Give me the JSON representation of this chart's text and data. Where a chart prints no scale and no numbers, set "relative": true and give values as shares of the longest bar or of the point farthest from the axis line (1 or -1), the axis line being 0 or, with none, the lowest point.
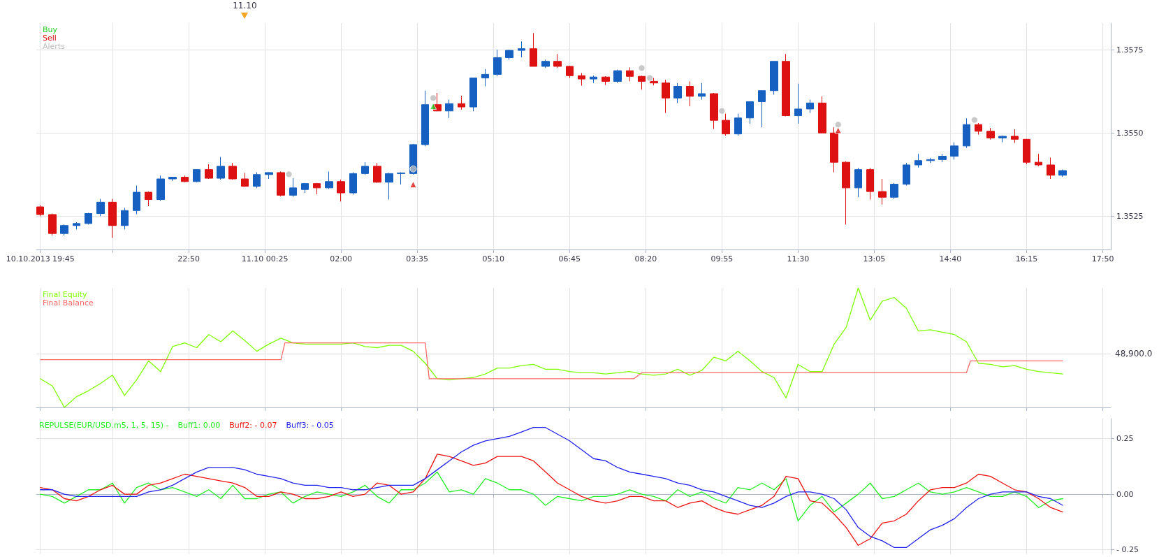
{
  "chart_data": [
    {
      "type": "candlestick",
      "x": [
        "2013-10-10T19:45",
        "2013-10-10T20:00",
        "2013-10-10T20:15",
        "2013-10-10T20:30",
        "2013-10-10T20:45",
        "2013-10-10T21:00",
        "2013-10-10T21:15",
        "2013-10-10T21:30",
        "2013-10-10T21:45",
        "2013-10-10T22:00",
        "2013-10-10T22:15",
        "2013-10-10T22:30",
        "2013-10-10T22:45",
        "2013-10-10T23:00",
        "2013-10-10T23:15",
        "2013-10-10T23:30",
        "2013-10-10T23:45",
        "2013-10-11T00:00",
        "2013-10-11T00:15",
        "2013-10-11T00:30",
        "2013-10-11T00:45",
        "2013-10-11T01:00",
        "2013-10-11T01:15",
        "2013-10-11T01:30",
        "2013-10-11T01:45",
        "2013-10-11T02:00",
        "2013-10-11T02:15",
        "2013-10-11T02:30",
        "2013-10-11T02:45",
        "2013-10-11T03:00",
        "2013-10-11T03:15",
        "2013-10-11T03:30",
        "2013-10-11T03:45",
        "2013-10-11T04:00",
        "2013-10-11T04:15",
        "2013-10-11T04:30",
        "2013-10-11T04:45",
        "2013-10-11T05:00",
        "2013-10-11T05:15",
        "2013-10-11T05:30",
        "2013-10-11T05:45",
        "2013-10-11T06:00",
        "2013-10-11T06:15",
        "2013-10-11T06:30",
        "2013-10-11T06:45",
        "2013-10-11T07:00",
        "2013-10-11T07:15",
        "2013-10-11T07:30",
        "2013-10-11T07:45",
        "2013-10-11T08:00",
        "2013-10-11T08:15",
        "2013-10-11T08:30",
        "2013-10-11T08:45",
        "2013-10-11T09:00",
        "2013-10-11T09:15",
        "2013-10-11T09:30",
        "2013-10-11T09:45",
        "2013-10-11T10:00",
        "2013-10-11T10:15",
        "2013-10-11T10:30",
        "2013-10-11T10:45",
        "2013-10-11T11:00",
        "2013-10-11T11:15",
        "2013-10-11T11:30",
        "2013-10-11T11:45",
        "2013-10-11T12:00",
        "2013-10-11T12:15",
        "2013-10-11T12:30",
        "2013-10-11T12:45",
        "2013-10-11T13:00",
        "2013-10-11T13:15",
        "2013-10-11T13:30",
        "2013-10-11T13:45",
        "2013-10-11T14:00",
        "2013-10-11T14:15",
        "2013-10-11T14:30",
        "2013-10-11T14:45",
        "2013-10-11T15:00",
        "2013-10-11T15:15",
        "2013-10-11T15:30",
        "2013-10-11T15:45",
        "2013-10-11T16:00",
        "2013-10-11T16:15",
        "2013-10-11T16:30",
        "2013-10-11T16:45",
        "2013-10-11T17:00"
      ],
      "ohlc": [
        [
          1.35278,
          1.35283,
          1.3525,
          1.35255
        ],
        [
          1.35255,
          1.35258,
          1.35192,
          1.35198
        ],
        [
          1.35198,
          1.35225,
          1.35192,
          1.35222
        ],
        [
          1.35222,
          1.35232,
          1.3521,
          1.35228
        ],
        [
          1.35228,
          1.3526,
          1.35225,
          1.35258
        ],
        [
          1.35258,
          1.35302,
          1.3525,
          1.35292
        ],
        [
          1.35292,
          1.35302,
          1.35185,
          1.35222
        ],
        [
          1.35222,
          1.35275,
          1.3521,
          1.35267
        ],
        [
          1.35267,
          1.35342,
          1.35256,
          1.35322
        ],
        [
          1.35322,
          1.35324,
          1.3528,
          1.353
        ],
        [
          1.353,
          1.35372,
          1.35296,
          1.35362
        ],
        [
          1.35362,
          1.35367,
          1.35356,
          1.35367
        ],
        [
          1.35367,
          1.35372,
          1.35352,
          1.35354
        ],
        [
          1.35354,
          1.3539,
          1.35352,
          1.3539
        ],
        [
          1.3539,
          1.35406,
          1.35362,
          1.35364
        ],
        [
          1.35364,
          1.35428,
          1.3536,
          1.354
        ],
        [
          1.354,
          1.3541,
          1.3536,
          1.35362
        ],
        [
          1.35362,
          1.3538,
          1.35338,
          1.3534
        ],
        [
          1.3534,
          1.35382,
          1.35334,
          1.35375
        ],
        [
          1.35375,
          1.35382,
          1.35362,
          1.35381
        ],
        [
          1.35381,
          1.35384,
          1.3531,
          1.35313
        ],
        [
          1.35313,
          1.35364,
          1.35308,
          1.35335
        ],
        [
          1.3533,
          1.3535,
          1.3532,
          1.35348
        ],
        [
          1.35348,
          1.3535,
          1.35316,
          1.35335
        ],
        [
          1.35335,
          1.35384,
          1.35332,
          1.35354
        ],
        [
          1.35354,
          1.3536,
          1.35294,
          1.3532
        ],
        [
          1.3532,
          1.35382,
          1.35315,
          1.35378
        ],
        [
          1.35378,
          1.35412,
          1.35375,
          1.354
        ],
        [
          1.354,
          1.3541,
          1.3535,
          1.35352
        ],
        [
          1.35352,
          1.3538,
          1.353,
          1.35378
        ],
        [
          1.35378,
          1.35382,
          1.35345,
          1.3538
        ],
        [
          1.35378,
          1.35467,
          1.35375,
          1.35465
        ],
        [
          1.35465,
          1.35627,
          1.3546,
          1.35585
        ],
        [
          1.35585,
          1.3562,
          1.35565,
          1.35566
        ],
        [
          1.35566,
          1.356,
          1.35545,
          1.35588
        ],
        [
          1.35588,
          1.35612,
          1.3557,
          1.35578
        ],
        [
          1.35578,
          1.35665,
          1.35565,
          1.35665
        ],
        [
          1.35665,
          1.35692,
          1.3564,
          1.35676
        ],
        [
          1.35676,
          1.3575,
          1.3567,
          1.35726
        ],
        [
          1.35726,
          1.3575,
          1.3572,
          1.35748
        ],
        [
          1.35748,
          1.35775,
          1.35727,
          1.35753
        ],
        [
          1.35753,
          1.358,
          1.357,
          1.357
        ],
        [
          1.357,
          1.3572,
          1.35695,
          1.35715
        ],
        [
          1.35715,
          1.35737,
          1.35695,
          1.357
        ],
        [
          1.357,
          1.35702,
          1.35665,
          1.35672
        ],
        [
          1.35672,
          1.3568,
          1.35642,
          1.35662
        ],
        [
          1.35662,
          1.35672,
          1.3565,
          1.35668
        ],
        [
          1.35668,
          1.3567,
          1.35644,
          1.35655
        ],
        [
          1.35655,
          1.3569,
          1.3565,
          1.35687
        ],
        [
          1.35687,
          1.35697,
          1.35655,
          1.3567
        ],
        [
          1.3567,
          1.35672,
          1.3563,
          1.35655
        ],
        [
          1.35655,
          1.35665,
          1.35643,
          1.3565
        ],
        [
          1.3565,
          1.3566,
          1.3556,
          1.35605
        ],
        [
          1.35605,
          1.3565,
          1.3559,
          1.3564
        ],
        [
          1.3564,
          1.35655,
          1.3558,
          1.3561
        ],
        [
          1.3561,
          1.3565,
          1.356,
          1.35618
        ],
        [
          1.35618,
          1.3562,
          1.35512,
          1.35538
        ],
        [
          1.35538,
          1.35558,
          1.35492,
          1.35497
        ],
        [
          1.35497,
          1.35558,
          1.35492,
          1.35545
        ],
        [
          1.35545,
          1.35594,
          1.35528,
          1.35594
        ],
        [
          1.35594,
          1.35627,
          1.35517,
          1.35627
        ],
        [
          1.35627,
          1.35715,
          1.35615,
          1.35715
        ],
        [
          1.35715,
          1.35737,
          1.3555,
          1.35552
        ],
        [
          1.35552,
          1.35648,
          1.35528,
          1.35572
        ],
        [
          1.35572,
          1.356,
          1.3556,
          1.3559
        ],
        [
          1.3559,
          1.3561,
          1.355,
          1.355
        ],
        [
          1.355,
          1.35517,
          1.35382,
          1.35412
        ],
        [
          1.35412,
          1.35415,
          1.35225,
          1.35335
        ],
        [
          1.35335,
          1.35395,
          1.35307,
          1.3539
        ],
        [
          1.3539,
          1.35395,
          1.353,
          1.35324
        ],
        [
          1.35324,
          1.35362,
          1.35285,
          1.35307
        ],
        [
          1.35307,
          1.3535,
          1.35302,
          1.35346
        ],
        [
          1.35346,
          1.3541,
          1.35342,
          1.35404
        ],
        [
          1.35404,
          1.35437,
          1.35396,
          1.35417
        ],
        [
          1.35417,
          1.35425,
          1.3541,
          1.3542
        ],
        [
          1.3542,
          1.35437,
          1.35412,
          1.3543
        ],
        [
          1.3543,
          1.35472,
          1.3542,
          1.35461
        ],
        [
          1.35461,
          1.35544,
          1.35455,
          1.35525
        ],
        [
          1.35525,
          1.3553,
          1.35495,
          1.35505
        ],
        [
          1.35505,
          1.35515,
          1.3548,
          1.35485
        ],
        [
          1.35485,
          1.35492,
          1.35472,
          1.3549
        ],
        [
          1.3549,
          1.35511,
          1.3547,
          1.35481
        ],
        [
          1.35481,
          1.35482,
          1.35406,
          1.35412
        ],
        [
          1.35412,
          1.35437,
          1.354,
          1.35404
        ],
        [
          1.35404,
          1.35426,
          1.35362,
          1.35373
        ],
        [
          1.35373,
          1.3539,
          1.35368,
          1.35387
        ]
      ],
      "colors": [
        "#dd1111",
        "#dd1111",
        "#1560c0",
        "#1560c0",
        "#1560c0",
        "#1560c0",
        "#dd1111",
        "#1560c0",
        "#1560c0",
        "#dd1111",
        "#1560c0",
        "#1560c0",
        "#dd1111",
        "#1560c0",
        "#dd1111",
        "#1560c0",
        "#dd1111",
        "#dd1111",
        "#1560c0",
        "#1560c0",
        "#dd1111",
        "#1560c0",
        "#1560c0",
        "#dd1111",
        "#1560c0",
        "#dd1111",
        "#1560c0",
        "#1560c0",
        "#dd1111",
        "#1560c0",
        "#1560c0",
        "#1560c0",
        "#1560c0",
        "#dd1111",
        "#1560c0",
        "#dd1111",
        "#1560c0",
        "#1560c0",
        "#1560c0",
        "#1560c0",
        "#1560c0",
        "#dd1111",
        "#1560c0",
        "#dd1111",
        "#dd1111",
        "#dd1111",
        "#1560c0",
        "#dd1111",
        "#1560c0",
        "#dd1111",
        "#dd1111",
        "#dd1111",
        "#dd1111",
        "#1560c0",
        "#dd1111",
        "#1560c0",
        "#dd1111",
        "#dd1111",
        "#1560c0",
        "#1560c0",
        "#1560c0",
        "#1560c0",
        "#dd1111",
        "#1560c0",
        "#1560c0",
        "#dd1111",
        "#dd1111",
        "#dd1111",
        "#1560c0",
        "#dd1111",
        "#dd1111",
        "#1560c0",
        "#1560c0",
        "#1560c0",
        "#1560c0",
        "#1560c0",
        "#1560c0",
        "#1560c0",
        "#dd1111",
        "#dd1111",
        "#1560c0",
        "#dd1111",
        "#dd1111",
        "#dd1111",
        "#dd1111",
        "#1560c0"
      ],
      "series": [
        {
          "name": "Buy",
          "type": "scatter",
          "marker": "triangle",
          "color": "#22cc22",
          "x": [
            "2013-10-11T03:55"
          ],
          "values": [
            1.3558
          ]
        },
        {
          "name": "Sell",
          "type": "scatter",
          "marker": "triangle",
          "color": "#dd1111",
          "x": [
            "2013-10-11T03:30",
            "2013-10-11T12:20"
          ],
          "values": [
            1.35345,
            1.35508
          ]
        },
        {
          "name": "Alerts",
          "type": "scatter",
          "marker": "circle",
          "color": "#bbbbbb",
          "x": [
            "2013-10-11T00:55",
            "2013-10-11T03:30",
            "2013-10-11T03:55",
            "2013-10-11T08:15",
            "2013-10-11T08:25",
            "2013-10-11T09:55",
            "2013-10-11T12:20",
            "2013-10-11T15:10"
          ],
          "values": [
            1.35376,
            1.35392,
            1.35605,
            1.35695,
            1.35665,
            1.35566,
            1.35525,
            1.35539
          ]
        }
      ],
      "xlim": [
        "2013-10-10T19:40",
        "2013-10-11T18:00"
      ],
      "xticks": [
        {
          "value": "2013-10-10T19:45",
          "label": "10.10.2013 19:45"
        },
        {
          "value": "2013-10-10T21:15",
          "label": null
        },
        {
          "value": "2013-10-10T22:50",
          "label": "22:50"
        },
        {
          "value": "2013-10-11T00:25",
          "label": "11.10 00:25"
        },
        {
          "value": "2013-10-11T02:00",
          "label": "02:00"
        },
        {
          "value": "2013-10-11T03:35",
          "label": "03:35"
        },
        {
          "value": "2013-10-11T05:10",
          "label": "05:10"
        },
        {
          "value": "2013-10-11T06:45",
          "label": "06:45"
        },
        {
          "value": "2013-10-11T08:20",
          "label": "08:20"
        },
        {
          "value": "2013-10-11T09:55",
          "label": "09:55"
        },
        {
          "value": "2013-10-11T11:30",
          "label": "11:30"
        },
        {
          "value": "2013-10-11T13:05",
          "label": "13:05"
        },
        {
          "value": "2013-10-11T14:40",
          "label": "14:40"
        },
        {
          "value": "2013-10-11T16:15",
          "label": "16:15"
        },
        {
          "value": "2013-10-11T17:50",
          "label": "17:50"
        }
      ],
      "ylim": [
        1.3515,
        1.3583
      ],
      "yticks": [
        {
          "value": 1.3525,
          "label": "1.3525"
        },
        {
          "value": 1.355,
          "label": "1.3550"
        },
        {
          "value": 1.3575,
          "label": "1.3575"
        }
      ],
      "annotations": [
        "11.10"
      ],
      "legend": "top left",
      "grid": true
    },
    {
      "type": "line",
      "x": [
        "2013-10-10T19:45",
        "2013-10-10T20:00",
        "2013-10-10T20:15",
        "2013-10-10T20:30",
        "2013-10-10T20:45",
        "2013-10-10T21:00",
        "2013-10-10T21:15",
        "2013-10-10T21:30",
        "2013-10-10T21:45",
        "2013-10-10T22:00",
        "2013-10-10T22:15",
        "2013-10-10T22:30",
        "2013-10-10T22:45",
        "2013-10-10T23:00",
        "2013-10-10T23:15",
        "2013-10-10T23:30",
        "2013-10-10T23:45",
        "2013-10-11T00:00",
        "2013-10-11T00:15",
        "2013-10-11T00:30",
        "2013-10-11T00:45",
        "2013-10-11T01:00",
        "2013-10-11T01:15",
        "2013-10-11T01:30",
        "2013-10-11T01:45",
        "2013-10-11T02:00",
        "2013-10-11T02:15",
        "2013-10-11T02:30",
        "2013-10-11T02:45",
        "2013-10-11T03:00",
        "2013-10-11T03:15",
        "2013-10-11T03:30",
        "2013-10-11T03:45",
        "2013-10-11T04:00",
        "2013-10-11T04:15",
        "2013-10-11T04:30",
        "2013-10-11T04:45",
        "2013-10-11T05:00",
        "2013-10-11T05:15",
        "2013-10-11T05:30",
        "2013-10-11T05:45",
        "2013-10-11T06:00",
        "2013-10-11T06:15",
        "2013-10-11T06:30",
        "2013-10-11T06:45",
        "2013-10-11T07:00",
        "2013-10-11T07:15",
        "2013-10-11T07:30",
        "2013-10-11T07:45",
        "2013-10-11T08:00",
        "2013-10-11T08:15",
        "2013-10-11T08:30",
        "2013-10-11T08:45",
        "2013-10-11T09:00",
        "2013-10-11T09:15",
        "2013-10-11T09:30",
        "2013-10-11T09:45",
        "2013-10-11T10:00",
        "2013-10-11T10:15",
        "2013-10-11T10:30",
        "2013-10-11T10:45",
        "2013-10-11T11:00",
        "2013-10-11T11:15",
        "2013-10-11T11:30",
        "2013-10-11T11:45",
        "2013-10-11T12:00",
        "2013-10-11T12:15",
        "2013-10-11T12:30",
        "2013-10-11T12:45",
        "2013-10-11T13:00",
        "2013-10-11T13:15",
        "2013-10-11T13:30",
        "2013-10-11T13:45",
        "2013-10-11T14:00",
        "2013-10-11T14:15",
        "2013-10-11T14:30",
        "2013-10-11T14:45",
        "2013-10-11T15:00",
        "2013-10-11T15:15",
        "2013-10-11T15:30",
        "2013-10-11T15:45",
        "2013-10-11T16:00",
        "2013-10-11T16:15",
        "2013-10-11T16:30",
        "2013-10-11T16:45",
        "2013-10-11T17:00"
      ],
      "series": [
        {
          "name": "Final Equity",
          "color": "#7fff00",
          "values": [
            0.24,
            0.18,
            0,
            0.09,
            0.14,
            0.2,
            0.27,
            0.1,
            0.23,
            0.39,
            0.3,
            0.51,
            0.54,
            0.5,
            0.61,
            0.55,
            0.64,
            0.56,
            0.47,
            0.53,
            0.58,
            0.54,
            0.53,
            0.53,
            0.53,
            0.53,
            0.54,
            0.51,
            0.5,
            0.52,
            0.52,
            0.47,
            0.37,
            0.24,
            0.23,
            0.24,
            0.25,
            0.28,
            0.33,
            0.33,
            0.35,
            0.36,
            0.32,
            0.32,
            0.3,
            0.29,
            0.29,
            0.28,
            0.29,
            0.3,
            0.28,
            0.27,
            0.28,
            0.32,
            0.27,
            0.31,
            0.42,
            0.39,
            0.47,
            0.39,
            0.3,
            0.25,
            0.08,
            0.36,
            0.3,
            0.3,
            0.53,
            0.67,
            1,
            0.73,
            0.89,
            0.92,
            0.83,
            0.64,
            0.65,
            0.63,
            0.61,
            0.55,
            0.37,
            0.36,
            0.34,
            0.35,
            0.32,
            0.3,
            0.29,
            0.28
          ]
        },
        {
          "name": "Final Balance",
          "color": "#ff6666",
          "x": [
            "2013-10-10T19:45",
            "2013-10-11T00:45",
            "2013-10-11T00:50",
            "2013-10-11T03:45",
            "2013-10-11T03:50",
            "2013-10-11T08:05",
            "2013-10-11T08:15",
            "2013-10-11T15:00",
            "2013-10-11T15:05",
            "2013-10-11T17:00"
          ],
          "values": [
            0.4,
            0.4,
            0.54,
            0.54,
            0.24,
            0.24,
            0.29,
            0.29,
            0.39,
            0.39
          ]
        }
      ],
      "relative": true,
      "xlim": [
        "2013-10-10T19:40",
        "2013-10-11T18:00"
      ],
      "xticks": [
        {
          "value": "2013-10-10T19:45",
          "label": null
        },
        {
          "value": "2013-10-10T21:15",
          "label": null
        },
        {
          "value": "2013-10-10T22:50",
          "label": null
        },
        {
          "value": "2013-10-11T00:25",
          "label": null
        },
        {
          "value": "2013-10-11T02:00",
          "label": null
        },
        {
          "value": "2013-10-11T03:35",
          "label": null
        },
        {
          "value": "2013-10-11T05:10",
          "label": null
        },
        {
          "value": "2013-10-11T06:45",
          "label": null
        },
        {
          "value": "2013-10-11T08:20",
          "label": null
        },
        {
          "value": "2013-10-11T09:55",
          "label": null
        },
        {
          "value": "2013-10-11T11:30",
          "label": null
        },
        {
          "value": "2013-10-11T13:05",
          "label": null
        },
        {
          "value": "2013-10-11T14:40",
          "label": null
        },
        {
          "value": "2013-10-11T16:15",
          "label": null
        },
        {
          "value": "2013-10-11T17:50",
          "label": null
        }
      ],
      "ref_lines": [
        {
          "axis": "y",
          "value": 0.45,
          "color": "#dddddd"
        }
      ],
      "annotations": [
        "48,900.0"
      ],
      "legend": "top left",
      "grid": "x",
      "tick_labels": false,
      "marker": "none"
    },
    {
      "type": "line",
      "title": "REPULSE(EUR/USD.m5, 1, 5, 15) -",
      "x": [
        "2013-10-10T19:45",
        "2013-10-10T20:00",
        "2013-10-10T20:15",
        "2013-10-10T20:30",
        "2013-10-10T20:45",
        "2013-10-10T21:00",
        "2013-10-10T21:15",
        "2013-10-10T21:30",
        "2013-10-10T21:45",
        "2013-10-10T22:00",
        "2013-10-10T22:15",
        "2013-10-10T22:30",
        "2013-10-10T22:45",
        "2013-10-10T23:00",
        "2013-10-10T23:15",
        "2013-10-10T23:30",
        "2013-10-10T23:45",
        "2013-10-11T00:00",
        "2013-10-11T00:15",
        "2013-10-11T00:30",
        "2013-10-11T00:45",
        "2013-10-11T01:00",
        "2013-10-11T01:15",
        "2013-10-11T01:30",
        "2013-10-11T01:45",
        "2013-10-11T02:00",
        "2013-10-11T02:15",
        "2013-10-11T02:30",
        "2013-10-11T02:45",
        "2013-10-11T03:00",
        "2013-10-11T03:15",
        "2013-10-11T03:30",
        "2013-10-11T03:45",
        "2013-10-11T04:00",
        "2013-10-11T04:15",
        "2013-10-11T04:30",
        "2013-10-11T04:45",
        "2013-10-11T05:00",
        "2013-10-11T05:15",
        "2013-10-11T05:30",
        "2013-10-11T05:45",
        "2013-10-11T06:00",
        "2013-10-11T06:15",
        "2013-10-11T06:30",
        "2013-10-11T06:45",
        "2013-10-11T07:00",
        "2013-10-11T07:15",
        "2013-10-11T07:30",
        "2013-10-11T07:45",
        "2013-10-11T08:00",
        "2013-10-11T08:15",
        "2013-10-11T08:30",
        "2013-10-11T08:45",
        "2013-10-11T09:00",
        "2013-10-11T09:15",
        "2013-10-11T09:30",
        "2013-10-11T09:45",
        "2013-10-11T10:00",
        "2013-10-11T10:15",
        "2013-10-11T10:30",
        "2013-10-11T10:45",
        "2013-10-11T11:00",
        "2013-10-11T11:15",
        "2013-10-11T11:30",
        "2013-10-11T11:45",
        "2013-10-11T12:00",
        "2013-10-11T12:15",
        "2013-10-11T12:30",
        "2013-10-11T12:45",
        "2013-10-11T13:00",
        "2013-10-11T13:15",
        "2013-10-11T13:30",
        "2013-10-11T13:45",
        "2013-10-11T14:00",
        "2013-10-11T14:15",
        "2013-10-11T14:30",
        "2013-10-11T14:45",
        "2013-10-11T15:00",
        "2013-10-11T15:15",
        "2013-10-11T15:30",
        "2013-10-11T15:45",
        "2013-10-11T16:00",
        "2013-10-11T16:15",
        "2013-10-11T16:30",
        "2013-10-11T16:45",
        "2013-10-11T17:00"
      ],
      "series": [
        {
          "name": "Buff1: 0.00",
          "color": "#22ee22",
          "values": [
            0,
            -0.01,
            -0.04,
            -0.01,
            0.02,
            0.02,
            0.05,
            -0.04,
            0.03,
            0.05,
            0.02,
            0.03,
            0.01,
            -0.01,
            0.02,
            -0.02,
            0.04,
            -0.02,
            -0.02,
            0,
            0.01,
            -0.04,
            -0.01,
            0.01,
            0,
            -0.01,
            0.01,
            0.04,
            -0.01,
            -0.04,
            0.02,
            0.02,
            0.05,
            0.1,
            0.01,
            0.02,
            0,
            0.07,
            0.05,
            0.02,
            0.02,
            0,
            -0.05,
            -0.01,
            -0.02,
            -0.03,
            -0.01,
            -0.01,
            0,
            0.02,
            0,
            -0.01,
            -0.03,
            0.02,
            -0.01,
            0.01,
            -0.02,
            -0.04,
            0.03,
            0.02,
            0.05,
            0.02,
            0.07,
            -0.12,
            -0.05,
            -0.01,
            -0.08,
            -0.04,
            0,
            0.05,
            -0.02,
            -0.01,
            0.02,
            0.05,
            0.01,
            0,
            0.01,
            0.03,
            0.01,
            -0.01,
            -0.01,
            0.01,
            -0.01,
            -0.06,
            -0.03,
            -0.02
          ]
        },
        {
          "name": "Buff2: - 0.07",
          "color": "#ee1111",
          "values": [
            0.03,
            0.02,
            -0.02,
            -0.03,
            -0.01,
            0.02,
            0.04,
            0,
            0,
            0.04,
            0.05,
            0.07,
            0.09,
            0.08,
            0.07,
            0.06,
            0.05,
            0.03,
            -0.01,
            -0.01,
            0.01,
            0,
            -0.02,
            -0.02,
            -0.01,
            0.01,
            -0.01,
            0,
            0.05,
            0.04,
            0,
            0.01,
            0.07,
            0.18,
            0.17,
            0.15,
            0.13,
            0.14,
            0.17,
            0.17,
            0.17,
            0.15,
            0.1,
            0.05,
            0.02,
            -0.01,
            -0.03,
            -0.04,
            -0.03,
            -0.01,
            -0.01,
            -0.03,
            -0.03,
            -0.06,
            -0.04,
            -0.03,
            -0.06,
            -0.08,
            -0.09,
            -0.07,
            -0.05,
            -0.01,
            0.08,
            0.07,
            -0.03,
            -0.04,
            -0.09,
            -0.15,
            -0.23,
            -0.2,
            -0.13,
            -0.12,
            -0.09,
            -0.03,
            0.02,
            0.03,
            0.03,
            0.05,
            0.09,
            0.08,
            0.05,
            0.02,
            0.01,
            -0.02,
            -0.06,
            -0.08
          ]
        },
        {
          "name": "Buff3: - 0.05",
          "color": "#2222ee",
          "values": [
            0.02,
            0.02,
            0,
            -0.01,
            -0.01,
            -0.01,
            -0.01,
            -0.01,
            -0.01,
            0.01,
            0.02,
            0.04,
            0.07,
            0.1,
            0.12,
            0.12,
            0.12,
            0.11,
            0.09,
            0.08,
            0.07,
            0.05,
            0.04,
            0.04,
            0.03,
            0.03,
            0.02,
            0.02,
            0.03,
            0.04,
            0.04,
            0.04,
            0.07,
            0.11,
            0.15,
            0.19,
            0.22,
            0.24,
            0.25,
            0.26,
            0.28,
            0.3,
            0.3,
            0.27,
            0.24,
            0.2,
            0.16,
            0.15,
            0.12,
            0.1,
            0.09,
            0.08,
            0.07,
            0.05,
            0.04,
            0.02,
            0.01,
            -0.01,
            -0.03,
            -0.05,
            -0.06,
            -0.04,
            -0.01,
            0.01,
            0.01,
            0,
            -0.02,
            -0.07,
            -0.15,
            -0.19,
            -0.21,
            -0.24,
            -0.24,
            -0.2,
            -0.16,
            -0.14,
            -0.11,
            -0.06,
            -0.02,
            0,
            0.01,
            0.01,
            0.01,
            -0.01,
            -0.02,
            -0.05
          ]
        }
      ],
      "xlim": [
        "2013-10-10T19:40",
        "2013-10-11T18:00"
      ],
      "xticks": [
        {
          "value": "2013-10-10T19:45",
          "label": null
        },
        {
          "value": "2013-10-10T21:15",
          "label": null
        },
        {
          "value": "2013-10-10T22:50",
          "label": null
        },
        {
          "value": "2013-10-11T00:25",
          "label": null
        },
        {
          "value": "2013-10-11T02:00",
          "label": null
        },
        {
          "value": "2013-10-11T03:35",
          "label": null
        },
        {
          "value": "2013-10-11T05:10",
          "label": null
        },
        {
          "value": "2013-10-11T06:45",
          "label": null
        },
        {
          "value": "2013-10-11T08:20",
          "label": null
        },
        {
          "value": "2013-10-11T09:55",
          "label": null
        },
        {
          "value": "2013-10-11T11:30",
          "label": null
        },
        {
          "value": "2013-10-11T13:05",
          "label": null
        },
        {
          "value": "2013-10-11T14:40",
          "label": null
        },
        {
          "value": "2013-10-11T16:15",
          "label": null
        },
        {
          "value": "2013-10-11T17:50",
          "label": null
        }
      ],
      "ylim": [
        -0.27,
        0.34
      ],
      "yticks": [
        {
          "value": 0.25,
          "label": "0.25"
        },
        {
          "value": 0,
          "label": "0.00"
        },
        {
          "value": -0.25,
          "label": "- 0.25"
        }
      ],
      "legend": "top left",
      "grid": true,
      "tick_labels": "y",
      "marker": "none"
    }
  ]
}
